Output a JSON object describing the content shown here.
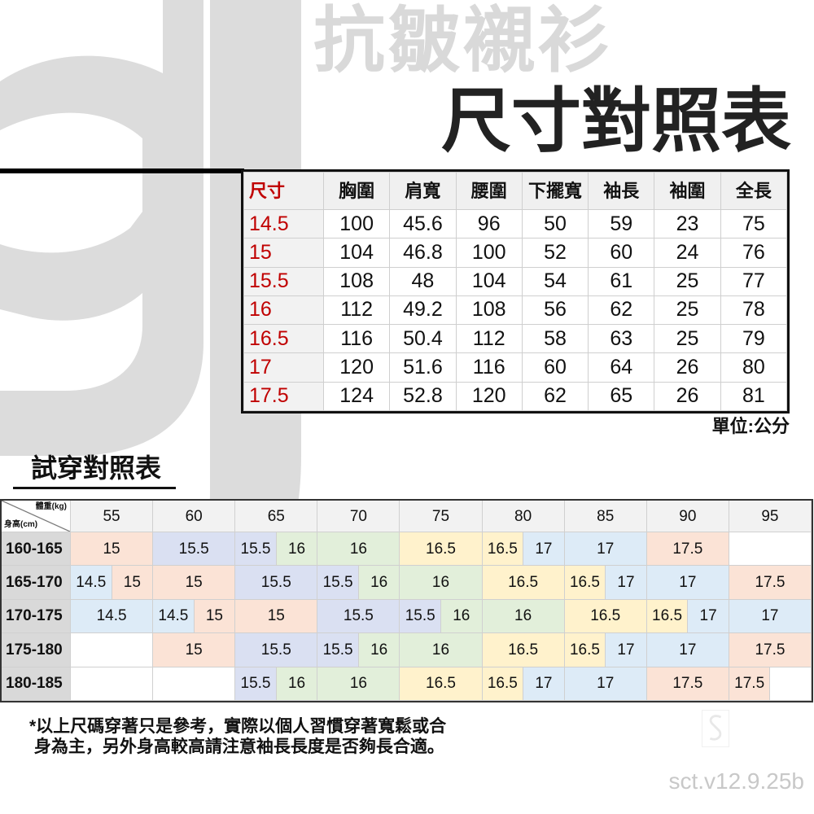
{
  "logo": "gj",
  "subtitle": "抗皺襯衫",
  "title": "尺寸對照表",
  "size_table": {
    "headers": [
      "尺寸",
      "胸圍",
      "肩寬",
      "腰圍",
      "下擺寬",
      "袖長",
      "袖圍",
      "全長"
    ],
    "rows": [
      [
        "14.5",
        "100",
        "45.6",
        "96",
        "50",
        "59",
        "23",
        "75"
      ],
      [
        "15",
        "104",
        "46.8",
        "100",
        "52",
        "60",
        "24",
        "76"
      ],
      [
        "15.5",
        "108",
        "48",
        "104",
        "54",
        "61",
        "25",
        "77"
      ],
      [
        "16",
        "112",
        "49.2",
        "108",
        "56",
        "62",
        "25",
        "78"
      ],
      [
        "16.5",
        "116",
        "50.4",
        "112",
        "58",
        "63",
        "25",
        "79"
      ],
      [
        "17",
        "120",
        "51.6",
        "116",
        "60",
        "64",
        "26",
        "80"
      ],
      [
        "17.5",
        "124",
        "52.8",
        "120",
        "62",
        "65",
        "26",
        "81"
      ]
    ],
    "unit": "單位:公分",
    "size_color": "#c00000"
  },
  "fit_table": {
    "title": "試穿對照表",
    "corner_weight": "體重(kg)",
    "corner_height": "身高(cm)",
    "weights": [
      "55",
      "60",
      "65",
      "70",
      "75",
      "80",
      "85",
      "90",
      "95"
    ],
    "colors": {
      "14.5": "#ddebf7",
      "15": "#fbe3d6",
      "15.5": "#dae0f2",
      "16": "#e2efda",
      "16.5": "#fff2cc",
      "17": "#ddebf7",
      "17.5": "#fbe3d6"
    },
    "rows": [
      {
        "height": "160-165",
        "cells": [
          [
            "15",
            2
          ],
          [
            "15.5",
            2
          ],
          [
            "15.5",
            1
          ],
          [
            "16",
            1
          ],
          [
            "16",
            2
          ],
          [
            "16.5",
            2
          ],
          [
            "16.5",
            1
          ],
          [
            "17",
            1
          ],
          [
            "17",
            2
          ],
          [
            "17.5",
            2
          ],
          [
            "",
            2
          ]
        ]
      },
      {
        "height": "165-170",
        "cells": [
          [
            "14.5",
            1
          ],
          [
            "15",
            1
          ],
          [
            "15",
            2
          ],
          [
            "15.5",
            2
          ],
          [
            "15.5",
            1
          ],
          [
            "16",
            1
          ],
          [
            "16",
            2
          ],
          [
            "16.5",
            2
          ],
          [
            "16.5",
            1
          ],
          [
            "17",
            1
          ],
          [
            "17",
            2
          ],
          [
            "17.5",
            2
          ]
        ]
      },
      {
        "height": "170-175",
        "cells": [
          [
            "14.5",
            2
          ],
          [
            "14.5",
            1
          ],
          [
            "15",
            1
          ],
          [
            "15",
            2
          ],
          [
            "15.5",
            2
          ],
          [
            "15.5",
            1
          ],
          [
            "16",
            1
          ],
          [
            "16",
            2
          ],
          [
            "16.5",
            2
          ],
          [
            "16.5",
            1
          ],
          [
            "17",
            1
          ],
          [
            "17",
            2
          ]
        ]
      },
      {
        "height": "175-180",
        "cells": [
          [
            "",
            2
          ],
          [
            "15",
            2
          ],
          [
            "15.5",
            2
          ],
          [
            "15.5",
            1
          ],
          [
            "16",
            1
          ],
          [
            "16",
            2
          ],
          [
            "16.5",
            2
          ],
          [
            "16.5",
            1
          ],
          [
            "17",
            1
          ],
          [
            "17",
            2
          ],
          [
            "17.5",
            2
          ]
        ]
      },
      {
        "height": "180-185",
        "cells": [
          [
            "",
            2
          ],
          [
            "",
            2
          ],
          [
            "15.5",
            1
          ],
          [
            "16",
            1
          ],
          [
            "16",
            2
          ],
          [
            "16.5",
            2
          ],
          [
            "16.5",
            1
          ],
          [
            "17",
            1
          ],
          [
            "17",
            2
          ],
          [
            "17.5",
            2
          ],
          [
            "17.5",
            1
          ],
          [
            "",
            1
          ]
        ]
      }
    ]
  },
  "note": {
    "line1": "*以上尺碼穿著只是參考，實際以個人習慣穿著寬鬆或合",
    "line2": " 身為主，另外身高較高請注意袖長長度是否夠長合適。"
  },
  "version": "sct.v12.9.25b"
}
